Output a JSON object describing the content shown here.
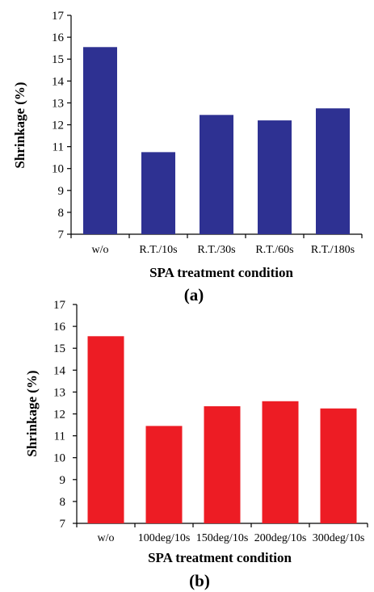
{
  "chart_data": [
    {
      "type": "bar",
      "panel_label": "(a)",
      "xlabel": "SPA treatment condition",
      "ylabel": "Shrinkage (%)",
      "categories": [
        "w/o",
        "R.T./10s",
        "R.T./30s",
        "R.T./60s",
        "R.T./180s"
      ],
      "values": [
        15.55,
        10.75,
        12.45,
        12.2,
        12.75
      ],
      "ylim": [
        7,
        17
      ],
      "yticks": [
        "7",
        "8",
        "9",
        "10",
        "11",
        "12",
        "13",
        "14",
        "15",
        "16",
        "17"
      ],
      "color": "#2e3192",
      "grid": false,
      "legend": "none"
    },
    {
      "type": "bar",
      "panel_label": "(b)",
      "xlabel": "SPA treatment condition",
      "ylabel": "Shrinkage (%)",
      "categories": [
        "w/o",
        "100deg/10s",
        "150deg/10s",
        "200deg/10s",
        "300deg/10s"
      ],
      "values": [
        15.55,
        11.45,
        12.35,
        12.58,
        12.25
      ],
      "ylim": [
        7,
        17
      ],
      "yticks": [
        "7",
        "8",
        "9",
        "10",
        "11",
        "12",
        "13",
        "14",
        "15",
        "16",
        "17"
      ],
      "color": "#ed1c24",
      "grid": false,
      "legend": "none"
    }
  ]
}
